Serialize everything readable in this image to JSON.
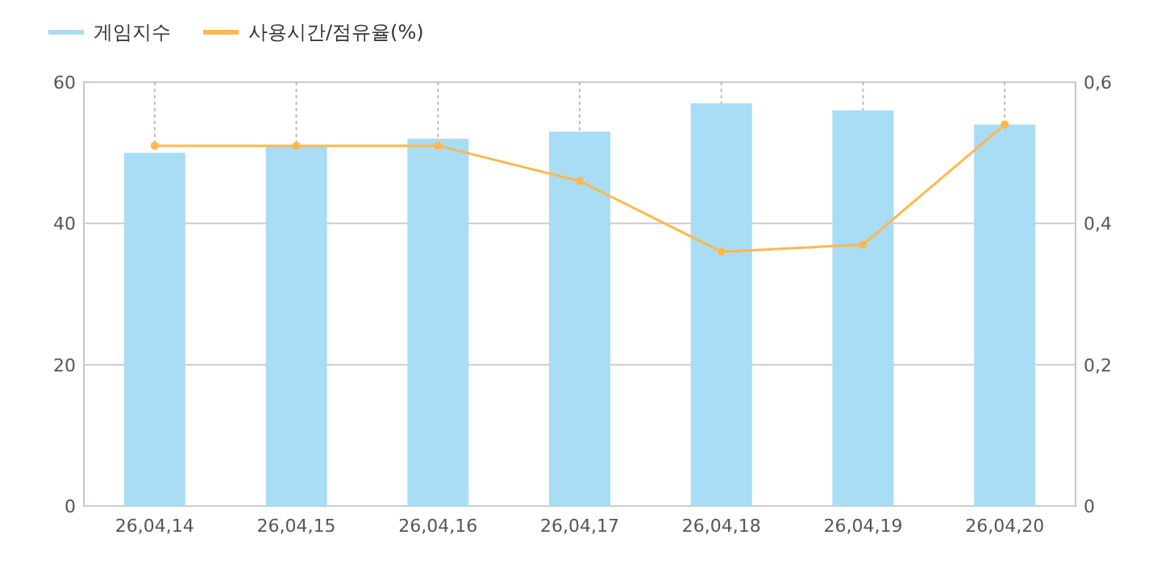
{
  "chart_data": {
    "type": "bar",
    "categories": [
      "26,04,14",
      "26,04,15",
      "26,04,16",
      "26,04,17",
      "26,04,18",
      "26,04,19",
      "26,04,20"
    ],
    "series": [
      {
        "name": "게임지수",
        "color": "#a9dcf5",
        "values": [
          50,
          51,
          52,
          53,
          57,
          56,
          54
        ]
      },
      {
        "name": "사용시간/점유율(%)",
        "type": "line",
        "axis": "y2",
        "color": "#ffb84d",
        "values": [
          0.51,
          0.51,
          0.51,
          0.46,
          0.36,
          0.37,
          0.54
        ]
      }
    ],
    "ylim": [
      0,
      60
    ],
    "yticks": [
      0,
      20,
      40,
      60
    ],
    "y2lim": [
      0,
      0.6
    ],
    "y2ticks": [
      0,
      {
        "value": 0.2,
        "label": "0,2"
      },
      {
        "value": 0.4,
        "label": "0,4"
      },
      {
        "value": 0.6,
        "label": "0,6"
      }
    ],
    "grid": true,
    "legend": "top left",
    "marker": "circle"
  }
}
